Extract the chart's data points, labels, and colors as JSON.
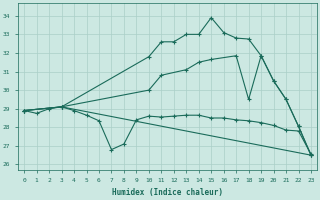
{
  "xlabel": "Humidex (Indice chaleur)",
  "xlim": [
    -0.5,
    23.5
  ],
  "ylim": [
    25.7,
    34.7
  ],
  "yticks": [
    26,
    27,
    28,
    29,
    30,
    31,
    32,
    33,
    34
  ],
  "xticks": [
    0,
    1,
    2,
    3,
    4,
    5,
    6,
    7,
    8,
    9,
    10,
    11,
    12,
    13,
    14,
    15,
    16,
    17,
    18,
    19,
    20,
    21,
    22,
    23
  ],
  "bg_color": "#cce8e2",
  "grid_color": "#aacfc8",
  "line_color": "#1a6b5a",
  "lines": [
    {
      "x": [
        0,
        1,
        2,
        3,
        4,
        5,
        6,
        7,
        8,
        9,
        10,
        11,
        12,
        13,
        14,
        15,
        16,
        17,
        18,
        19,
        20,
        21,
        22,
        23
      ],
      "y": [
        28.9,
        28.75,
        29.0,
        29.1,
        28.9,
        28.65,
        28.35,
        26.8,
        27.1,
        28.4,
        28.6,
        28.55,
        28.6,
        28.65,
        28.65,
        28.5,
        28.5,
        28.4,
        28.35,
        28.25,
        28.1,
        27.85,
        27.8,
        26.55
      ]
    },
    {
      "x": [
        0,
        3,
        10,
        11,
        12,
        13,
        14,
        15,
        16,
        17,
        18,
        19,
        20,
        21,
        22,
        23
      ],
      "y": [
        28.9,
        29.1,
        31.8,
        32.6,
        32.6,
        33.0,
        33.0,
        33.9,
        33.1,
        32.8,
        32.75,
        31.85,
        30.5,
        29.5,
        28.05,
        26.5
      ]
    },
    {
      "x": [
        0,
        3,
        10,
        11,
        13,
        14,
        15,
        17,
        18,
        19,
        20,
        21,
        22,
        23
      ],
      "y": [
        28.9,
        29.1,
        30.0,
        30.8,
        31.1,
        31.5,
        31.65,
        31.85,
        29.5,
        31.85,
        30.5,
        29.5,
        28.05,
        26.5
      ]
    },
    {
      "x": [
        0,
        3,
        23
      ],
      "y": [
        28.9,
        29.1,
        26.5
      ]
    }
  ]
}
